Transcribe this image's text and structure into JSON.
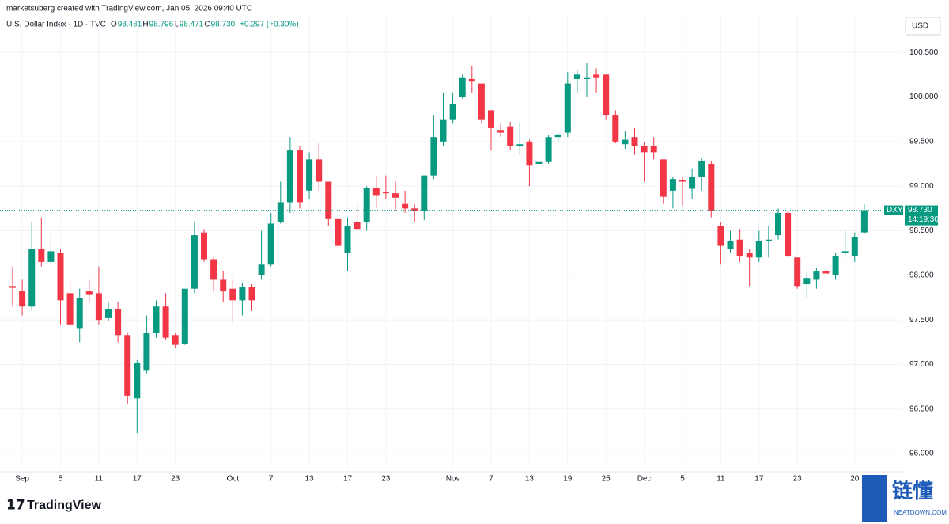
{
  "header": {
    "credit": "marketsuberg created with TradingView.com, Jan 05, 2026 09:40 UTC",
    "symbol": "U.S. Dollar Index · 1D · TVC",
    "o_label": "O",
    "o": "98.481",
    "h_label": "H",
    "h": "98.796",
    "l_label": "L",
    "l": "98.471",
    "c_label": "C",
    "c": "98.730",
    "change": "+0.297 (+0.30%)",
    "currency": "USD"
  },
  "price_tag": {
    "symbol": "DXY",
    "price": "98.730",
    "countdown": "14:19:30"
  },
  "logo": "TradingView",
  "watermark": {
    "name": "链懂",
    "site": "NEATDOWN.COM"
  },
  "chart_data": {
    "type": "candlestick",
    "up_color": "#089981",
    "down_color": "#f23645",
    "ylim": [
      95.85,
      100.91
    ],
    "yticks": [
      {
        "value": 96,
        "label": "96.000"
      },
      {
        "value": 96.5,
        "label": "96.500"
      },
      {
        "value": 97,
        "label": "97.000"
      },
      {
        "value": 97.5,
        "label": "97.500"
      },
      {
        "value": 98,
        "label": "98.000"
      },
      {
        "value": 98.5,
        "label": "98.500"
      },
      {
        "value": 99,
        "label": "99.000"
      },
      {
        "value": 99.5,
        "label": "99.500"
      },
      {
        "value": 100,
        "label": "100.000"
      },
      {
        "value": 100.5,
        "label": "100.500"
      }
    ],
    "grid": true,
    "categories": [
      null,
      "Sep",
      null,
      null,
      null,
      "5",
      null,
      null,
      null,
      "11",
      null,
      null,
      null,
      "17",
      null,
      null,
      null,
      "23",
      null,
      null,
      null,
      null,
      null,
      "Oct",
      null,
      null,
      null,
      "7",
      null,
      null,
      null,
      "13",
      null,
      null,
      null,
      "17",
      null,
      null,
      null,
      "23",
      null,
      null,
      null,
      null,
      null,
      null,
      "Nov",
      null,
      null,
      null,
      "7",
      null,
      null,
      null,
      "13",
      null,
      null,
      null,
      "19",
      null,
      null,
      null,
      "25",
      null,
      null,
      null,
      "Dec",
      null,
      null,
      null,
      "5",
      null,
      null,
      null,
      "11",
      null,
      null,
      null,
      "17",
      null,
      null,
      null,
      "23",
      null,
      null,
      null,
      null,
      null,
      "20",
      null
    ],
    "open": [
      97.88,
      97.82,
      97.65,
      98.3,
      98.15,
      98.25,
      97.8,
      97.4,
      97.82,
      97.8,
      97.52,
      97.62,
      97.33,
      96.62,
      96.93,
      97.35,
      97.65,
      97.33,
      97.23,
      97.85,
      98.48,
      98.18,
      97.95,
      97.85,
      97.72,
      97.87,
      98.0,
      98.12,
      98.6,
      98.82,
      99.4,
      98.95,
      99.3,
      99.05,
      98.63,
      98.25,
      98.6,
      98.6,
      98.98,
      98.93,
      98.92,
      98.8,
      98.75,
      98.72,
      99.12,
      99.5,
      99.75,
      100.0,
      100.2,
      100.15,
      99.85,
      99.63,
      99.67,
      99.45,
      99.5,
      99.25,
      99.27,
      99.55,
      99.6,
      100.2,
      100.2,
      100.25,
      100.25,
      99.8,
      99.47,
      99.55,
      99.45,
      99.45,
      99.3,
      98.95,
      99.07,
      98.97,
      99.1,
      99.25,
      98.55,
      98.3,
      98.4,
      98.25,
      98.2,
      98.38,
      98.45,
      98.7,
      98.2,
      97.9,
      97.95,
      98.05,
      98.0,
      98.25,
      98.22,
      98.481
    ],
    "high": [
      98.1,
      97.95,
      98.6,
      98.65,
      98.45,
      98.3,
      97.95,
      97.85,
      97.95,
      98.1,
      97.7,
      97.7,
      97.35,
      97.05,
      97.55,
      97.72,
      97.8,
      97.35,
      97.85,
      98.6,
      98.52,
      98.2,
      98.05,
      97.95,
      97.92,
      97.9,
      98.5,
      98.7,
      99.05,
      99.55,
      99.45,
      99.38,
      99.48,
      99.05,
      98.65,
      98.65,
      98.8,
      99.0,
      99.12,
      99.12,
      99.05,
      98.95,
      98.8,
      99.12,
      99.8,
      100.05,
      100.05,
      100.25,
      100.35,
      100.15,
      99.85,
      99.7,
      99.72,
      99.72,
      99.52,
      99.5,
      99.57,
      99.6,
      100.28,
      100.3,
      100.38,
      100.32,
      100.25,
      99.85,
      99.62,
      99.65,
      99.5,
      99.55,
      99.3,
      99.1,
      99.1,
      99.2,
      99.32,
      99.28,
      98.6,
      98.5,
      98.52,
      98.3,
      98.5,
      98.55,
      98.75,
      98.72,
      98.2,
      98.05,
      98.08,
      98.1,
      98.25,
      98.5,
      98.48,
      98.796
    ],
    "low": [
      97.65,
      97.55,
      97.6,
      98.1,
      98.1,
      97.45,
      97.42,
      97.25,
      97.7,
      97.45,
      97.48,
      97.25,
      96.55,
      96.23,
      96.9,
      97.3,
      97.28,
      97.18,
      97.22,
      97.8,
      98.15,
      97.82,
      97.7,
      97.48,
      97.55,
      97.6,
      97.95,
      98.1,
      98.58,
      98.7,
      98.75,
      98.85,
      98.95,
      98.55,
      98.3,
      98.05,
      98.45,
      98.5,
      98.75,
      98.85,
      98.72,
      98.7,
      98.6,
      98.62,
      99.08,
      99.45,
      99.7,
      99.98,
      100.05,
      99.7,
      99.4,
      99.55,
      99.4,
      99.35,
      99.0,
      99.0,
      99.25,
      99.5,
      99.55,
      100.05,
      100.0,
      100.05,
      99.75,
      99.48,
      99.42,
      99.35,
      99.05,
      99.3,
      98.8,
      98.75,
      98.78,
      98.85,
      98.95,
      98.65,
      98.12,
      98.25,
      98.15,
      97.88,
      98.15,
      98.2,
      98.4,
      98.2,
      97.85,
      97.75,
      97.85,
      97.95,
      97.95,
      98.2,
      98.15,
      98.471
    ],
    "close": [
      97.86,
      97.65,
      98.3,
      98.15,
      98.27,
      97.72,
      97.45,
      97.75,
      97.78,
      97.5,
      97.62,
      97.33,
      96.65,
      97.02,
      97.35,
      97.65,
      97.3,
      97.22,
      97.85,
      98.45,
      98.18,
      97.95,
      97.82,
      97.72,
      97.87,
      97.72,
      98.12,
      98.58,
      98.82,
      99.4,
      98.82,
      99.3,
      99.05,
      98.63,
      98.33,
      98.55,
      98.52,
      98.98,
      98.9,
      98.92,
      98.87,
      98.75,
      98.72,
      99.12,
      99.55,
      99.75,
      99.92,
      100.22,
      100.18,
      99.75,
      99.65,
      99.6,
      99.45,
      99.47,
      99.23,
      99.27,
      99.55,
      99.58,
      100.15,
      100.25,
      100.22,
      100.22,
      99.8,
      99.5,
      99.52,
      99.45,
      99.38,
      99.38,
      98.88,
      99.08,
      99.05,
      99.1,
      99.28,
      98.72,
      98.33,
      98.38,
      98.22,
      98.2,
      98.38,
      98.4,
      98.7,
      98.22,
      97.88,
      97.97,
      98.05,
      98.02,
      98.22,
      98.27,
      98.43,
      98.73
    ]
  }
}
